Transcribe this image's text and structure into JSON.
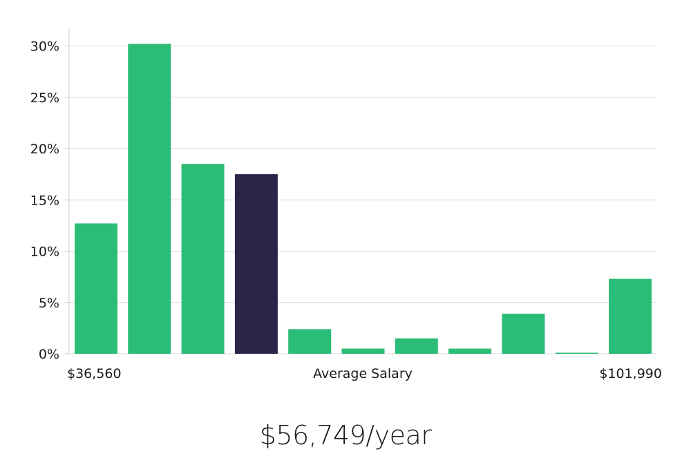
{
  "chart_data": {
    "type": "bar",
    "title": "",
    "xlabel": "Average Salary",
    "ylabel": "",
    "x_min_label": "$36,560",
    "x_max_label": "$101,990",
    "ylim": [
      0,
      32
    ],
    "yticks": [
      0,
      5,
      10,
      15,
      20,
      25,
      30
    ],
    "ytick_labels": [
      "0%",
      "5%",
      "10%",
      "15%",
      "20%",
      "25%",
      "30%"
    ],
    "grid": true,
    "values": [
      12.7,
      30.2,
      18.5,
      17.5,
      2.4,
      0.5,
      1.5,
      0.5,
      3.9,
      0.05,
      7.3
    ],
    "highlight_index": 3,
    "colors": {
      "bar": "#2bbd77",
      "highlight": "#29264a",
      "grid": "#d9d9d9",
      "axis": "#cccccc"
    }
  },
  "summary": {
    "salary": "$56,749/year"
  }
}
